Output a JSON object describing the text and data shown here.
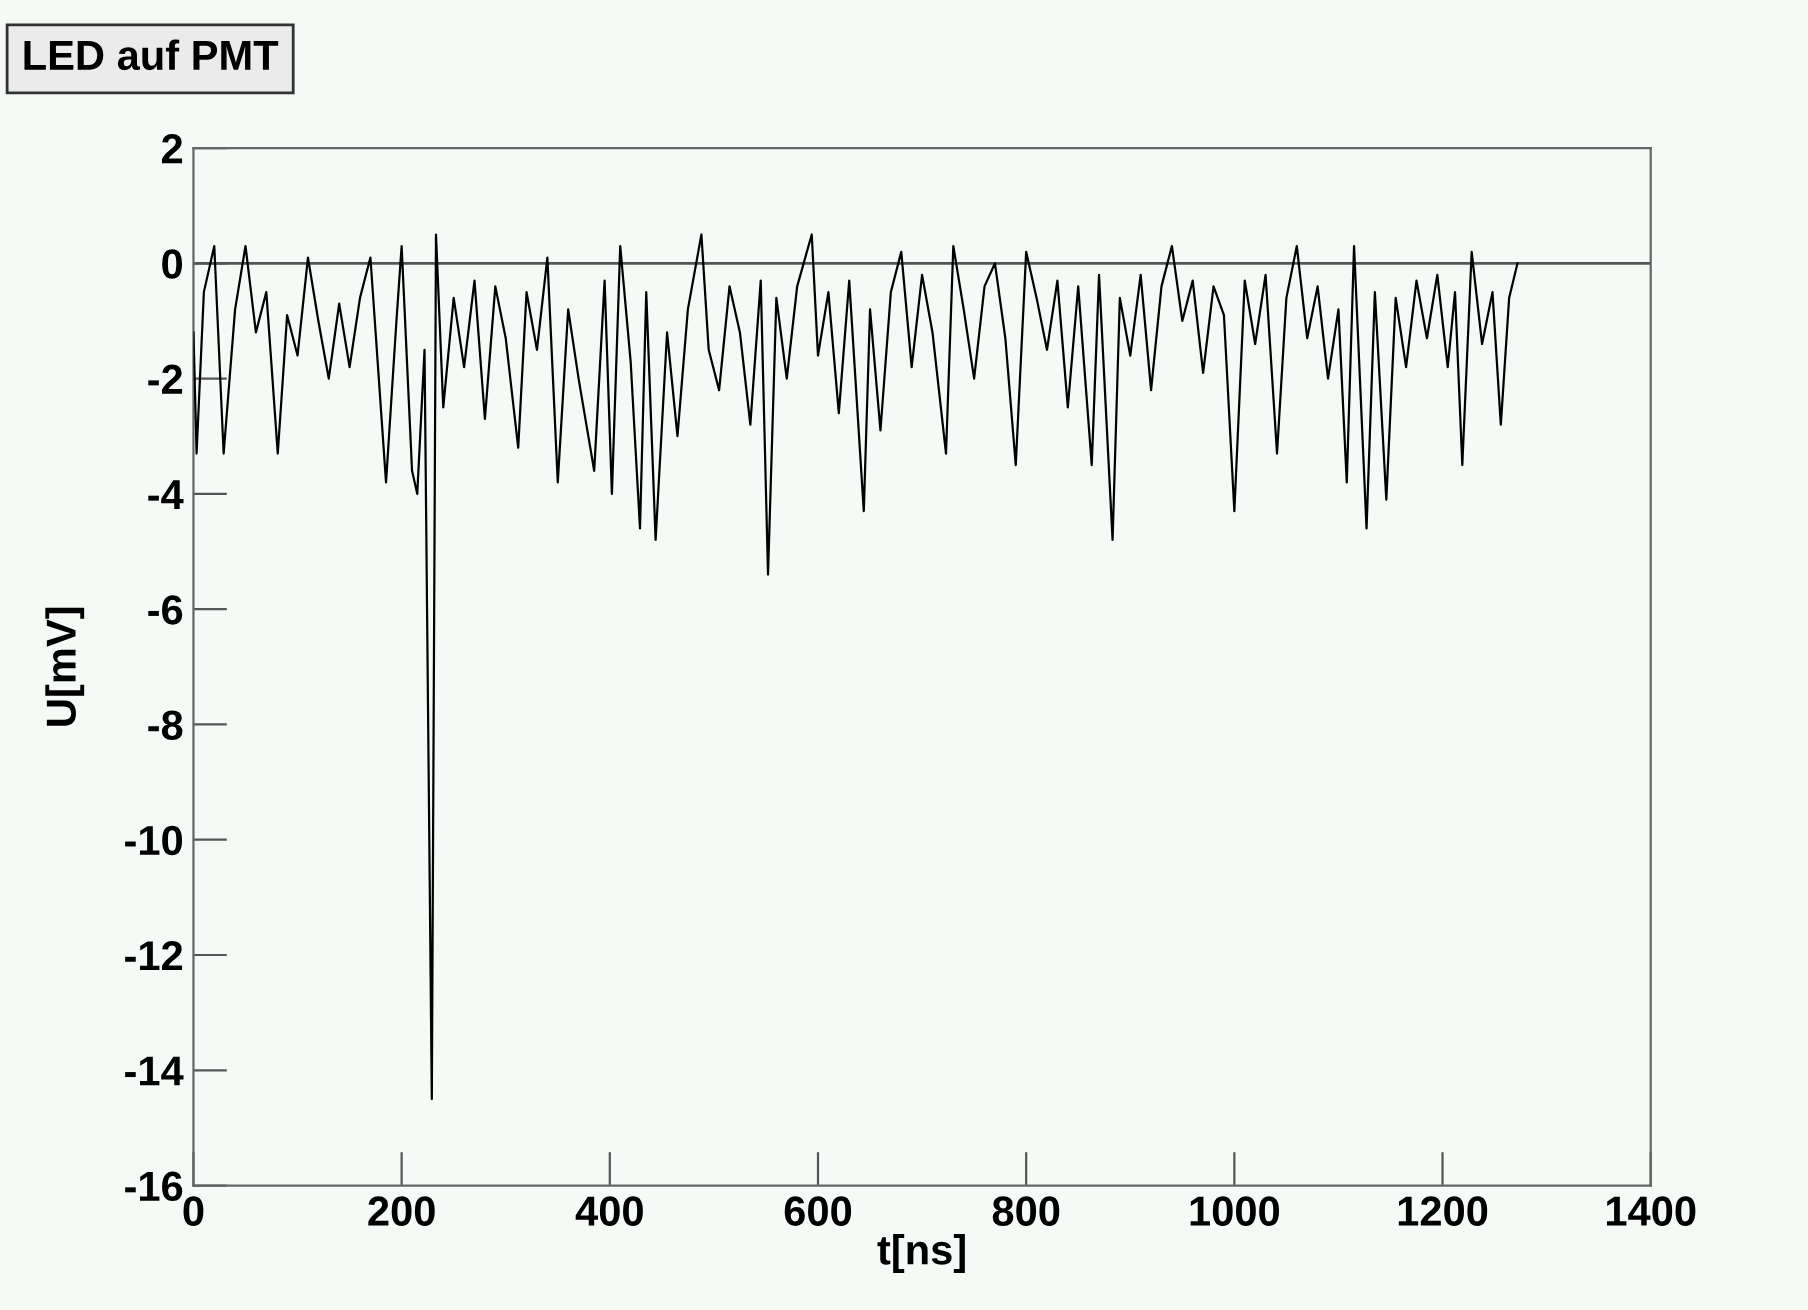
{
  "chart_data": {
    "type": "line",
    "title": "LED auf PMT",
    "xlabel": "t[ns]",
    "ylabel": "U[mV]",
    "x": [
      0,
      3,
      10,
      20,
      29,
      40,
      50,
      60,
      70,
      81,
      90,
      100,
      110,
      120,
      130,
      140,
      150,
      160,
      170,
      185,
      195,
      200,
      210,
      215,
      222,
      229,
      233,
      240,
      250,
      260,
      270,
      280,
      290,
      300,
      312,
      320,
      330,
      340,
      350,
      360,
      370,
      385,
      395,
      402,
      410,
      420,
      429,
      435,
      444,
      455,
      465,
      475,
      488,
      495,
      505,
      515,
      525,
      535,
      545,
      552,
      560,
      570,
      580,
      594,
      600,
      610,
      620,
      630,
      644,
      650,
      660,
      670,
      680,
      690,
      700,
      710,
      723,
      730,
      740,
      750,
      760,
      770,
      780,
      790,
      800,
      810,
      820,
      830,
      840,
      850,
      863,
      870,
      883,
      890,
      900,
      910,
      920,
      930,
      940,
      950,
      960,
      970,
      980,
      990,
      1000,
      1010,
      1020,
      1030,
      1041,
      1050,
      1060,
      1070,
      1080,
      1090,
      1100,
      1108,
      1115,
      1127,
      1135,
      1146,
      1155,
      1165,
      1175,
      1185,
      1195,
      1205,
      1212,
      1219,
      1228,
      1238,
      1248,
      1256,
      1264,
      1272
    ],
    "series": [
      {
        "color": "#000000",
        "values": [
          -1.2,
          -3.3,
          -0.5,
          0.3,
          -3.3,
          -0.8,
          0.3,
          -1.2,
          -0.5,
          -3.3,
          -0.9,
          -1.6,
          0.1,
          -1.0,
          -2.0,
          -0.7,
          -1.8,
          -0.6,
          0.1,
          -3.8,
          -1.0,
          0.3,
          -3.6,
          -4.0,
          -1.5,
          -14.5,
          0.5,
          -2.5,
          -0.6,
          -1.8,
          -0.3,
          -2.7,
          -0.4,
          -1.3,
          -3.2,
          -0.5,
          -1.5,
          0.1,
          -3.8,
          -0.8,
          -2.0,
          -3.6,
          -0.3,
          -4.0,
          0.3,
          -1.7,
          -4.6,
          -0.5,
          -4.8,
          -1.2,
          -3.0,
          -0.8,
          0.5,
          -1.5,
          -2.2,
          -0.4,
          -1.2,
          -2.8,
          -0.3,
          -5.4,
          -0.6,
          -2.0,
          -0.4,
          0.5,
          -1.6,
          -0.5,
          -2.6,
          -0.3,
          -4.3,
          -0.8,
          -2.9,
          -0.5,
          0.2,
          -1.8,
          -0.2,
          -1.2,
          -3.3,
          0.3,
          -0.8,
          -2.0,
          -0.4,
          0.0,
          -1.3,
          -3.5,
          0.2,
          -0.6,
          -1.5,
          -0.3,
          -2.5,
          -0.4,
          -3.5,
          -0.2,
          -4.8,
          -0.6,
          -1.6,
          -0.2,
          -2.2,
          -0.4,
          0.3,
          -1.0,
          -0.3,
          -1.9,
          -0.4,
          -0.9,
          -4.3,
          -0.3,
          -1.4,
          -0.2,
          -3.3,
          -0.6,
          0.3,
          -1.3,
          -0.4,
          -2.0,
          -0.8,
          -3.8,
          0.3,
          -4.6,
          -0.5,
          -4.1,
          -0.6,
          -1.8,
          -0.3,
          -1.3,
          -0.2,
          -1.8,
          -0.5,
          -3.5,
          0.2,
          -1.4,
          -0.5,
          -2.8,
          -0.6,
          0.0
        ]
      }
    ],
    "xlim": [
      0,
      1400
    ],
    "xticks": [
      0,
      200,
      400,
      600,
      800,
      1000,
      1200,
      1400
    ],
    "ylim": [
      -16,
      2
    ],
    "yticks": [
      -16,
      -14,
      -12,
      -10,
      -8,
      -6,
      -4,
      -2,
      0,
      2
    ],
    "ref_lines": [
      {
        "axis": "y",
        "value": 0,
        "color": "#555555"
      }
    ],
    "grid": false,
    "legend": false,
    "marker": "none",
    "line_style": "solid"
  }
}
